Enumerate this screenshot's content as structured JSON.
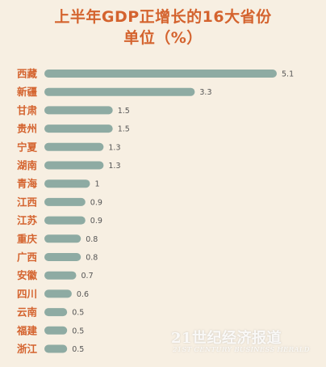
{
  "chart_data": {
    "type": "bar",
    "orientation": "horizontal",
    "title": "上半年GDP正增长的16大省份",
    "subtitle": "单位（%）",
    "categories": [
      "西藏",
      "新疆",
      "甘肃",
      "贵州",
      "宁夏",
      "湖南",
      "青海",
      "江西",
      "江苏",
      "重庆",
      "广西",
      "安徽",
      "四川",
      "云南",
      "福建",
      "浙江"
    ],
    "values": [
      5.1,
      3.3,
      1.5,
      1.5,
      1.3,
      1.3,
      1,
      0.9,
      0.9,
      0.8,
      0.8,
      0.7,
      0.6,
      0.5,
      0.5,
      0.5
    ],
    "value_labels": [
      "5.1",
      "3.3",
      "1.5",
      "1.5",
      "1.3",
      "1.3",
      "1",
      "0.9",
      "0.9",
      "0.8",
      "0.8",
      "0.7",
      "0.6",
      "0.5",
      "0.5",
      "0.5"
    ],
    "xlim": [
      0,
      5.1
    ],
    "grid": false,
    "colors": {
      "bar": "#8eaba3",
      "title": "#d4632e",
      "category_label": "#d4632e",
      "value_label": "#555555",
      "background": "#f7efe2"
    }
  },
  "watermark": {
    "line1": "21世纪经济报道",
    "line2": "21ST CENTURY BUSINESS HERALD"
  }
}
